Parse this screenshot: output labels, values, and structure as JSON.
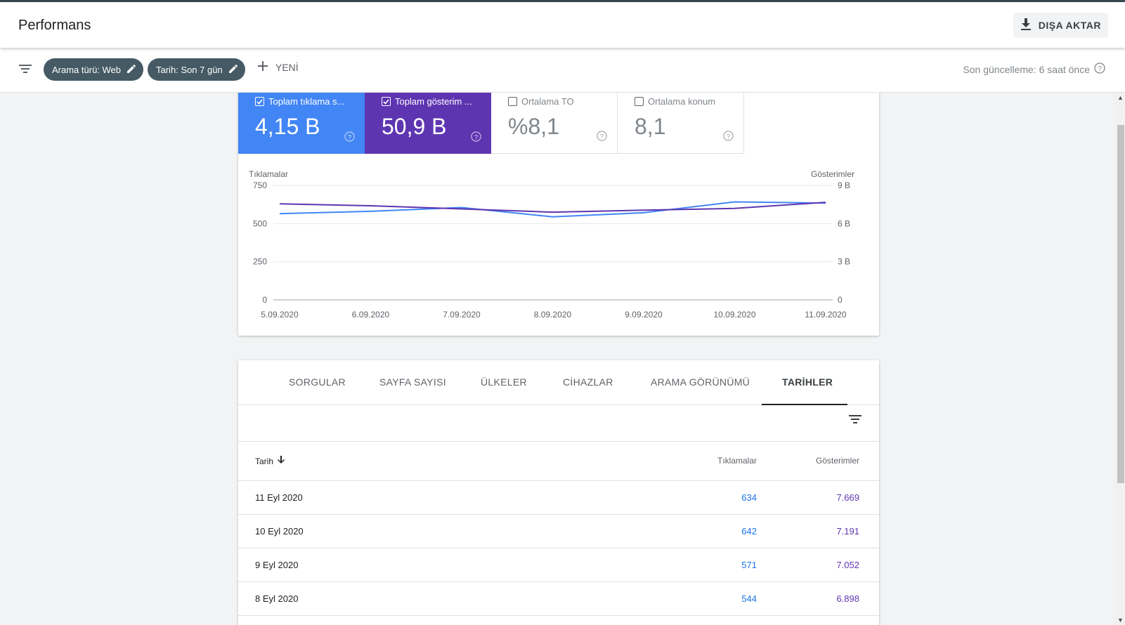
{
  "header": {
    "title": "Performans",
    "export_label": "DIŞA AKTAR"
  },
  "filters": {
    "chips": [
      "Arama türü: Web",
      "Tarih: Son 7 gün"
    ],
    "new_label": "YENİ",
    "last_updated": "Son güncelleme: 6 saat önce"
  },
  "metrics": [
    {
      "label": "Toplam tıklama s...",
      "value": "4,15 B",
      "checked": true,
      "color": "#4285f4"
    },
    {
      "label": "Toplam gösterim ...",
      "value": "50,9 B",
      "checked": true,
      "color": "#5e35b1"
    },
    {
      "label": "Ortalama TO",
      "value": "%8,1",
      "checked": false,
      "color": "#ffffff"
    },
    {
      "label": "Ortalama konum",
      "value": "8,1",
      "checked": false,
      "color": "#ffffff"
    }
  ],
  "chart_data": {
    "type": "line",
    "x": [
      "5.09.2020",
      "6.09.2020",
      "7.09.2020",
      "8.09.2020",
      "9.09.2020",
      "10.09.2020",
      "11.09.2020"
    ],
    "y_left_label": "Tıklamalar",
    "y_right_label": "Gösterimler",
    "y_left_ticks": [
      "0",
      "250",
      "500",
      "750"
    ],
    "y_right_ticks": [
      "0",
      "3 B",
      "6 B",
      "9 B"
    ],
    "ylim_left": [
      0,
      750
    ],
    "ylim_right": [
      0,
      9000
    ],
    "series": [
      {
        "name": "Tıklamalar",
        "axis": "left",
        "color": "#4285f4",
        "values": [
          565,
          580,
          605,
          544,
          571,
          642,
          634
        ]
      },
      {
        "name": "Gösterimler",
        "axis": "right",
        "color": "#5e35b1",
        "values": [
          7550,
          7400,
          7150,
          6898,
          7052,
          7191,
          7669
        ]
      }
    ]
  },
  "tabs": [
    "SORGULAR",
    "SAYFA SAYISI",
    "ÜLKELER",
    "CİHAZLAR",
    "ARAMA GÖRÜNÜMÜ",
    "TARİHLER"
  ],
  "active_tab": "TARİHLER",
  "table": {
    "headers": {
      "date": "Tarih",
      "clicks": "Tıklamalar",
      "impressions": "Gösterimler"
    },
    "rows": [
      {
        "date": "11 Eyl 2020",
        "clicks": "634",
        "impressions": "7.669"
      },
      {
        "date": "10 Eyl 2020",
        "clicks": "642",
        "impressions": "7.191"
      },
      {
        "date": "9 Eyl 2020",
        "clicks": "571",
        "impressions": "7.052"
      },
      {
        "date": "8 Eyl 2020",
        "clicks": "544",
        "impressions": "6.898"
      }
    ]
  }
}
